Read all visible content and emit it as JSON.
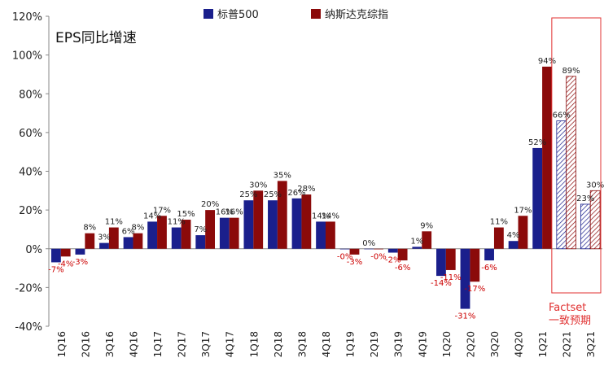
{
  "chart_data": {
    "type": "bar",
    "title": "EPS同比增速",
    "categories": [
      "1Q16",
      "2Q16",
      "3Q16",
      "4Q16",
      "1Q17",
      "2Q17",
      "3Q17",
      "4Q17",
      "1Q18",
      "2Q18",
      "3Q18",
      "4Q18",
      "1Q19",
      "2Q19",
      "3Q19",
      "4Q19",
      "1Q20",
      "2Q20",
      "3Q20",
      "4Q20",
      "1Q21",
      "2Q21",
      "3Q21"
    ],
    "series": [
      {
        "name": "标普500",
        "color": "#1a1f8c",
        "values": [
          -7,
          -3,
          3,
          6,
          14,
          11,
          7,
          16,
          25,
          25,
          26,
          14,
          -0.3,
          0,
          -2,
          1,
          -14,
          -31,
          -6,
          4,
          52,
          66,
          23
        ],
        "labels": [
          "-7%",
          "-3%",
          "3%",
          "6%",
          "14%",
          "11%",
          "7%",
          "16%",
          "25%",
          "25%",
          "26%",
          "14%",
          "-0%",
          "0%",
          "-2%",
          "1%",
          "-14%",
          "-31%",
          "-6%",
          "4%",
          "52%",
          "66%",
          "23%"
        ]
      },
      {
        "name": "纳斯达克综指",
        "color": "#8b0a0a",
        "values": [
          -4,
          8,
          11,
          8,
          17,
          15,
          20,
          16,
          30,
          35,
          28,
          14,
          -3,
          -0.3,
          -6,
          9,
          -11,
          -17,
          11,
          17,
          94,
          89,
          30
        ],
        "labels": [
          "-4%",
          "8%",
          "11%",
          "8%",
          "17%",
          "15%",
          "20%",
          "16%",
          "30%",
          "35%",
          "28%",
          "14%",
          "-3%",
          "-0%",
          "-6%",
          "9%",
          "-11%",
          "-17%",
          "11%",
          "17%",
          "94%",
          "89%",
          "30%"
        ]
      }
    ],
    "forecast_categories": [
      "2Q21",
      "3Q21"
    ],
    "forecast_note_line1": "Factset",
    "forecast_note_line2": "一致预期",
    "ylim": [
      -40,
      120
    ],
    "yticks": [
      -40,
      -20,
      0,
      20,
      40,
      60,
      80,
      100,
      120
    ],
    "ytick_labels": [
      "-40%",
      "-20%",
      "0%",
      "20%",
      "40%",
      "60%",
      "80%",
      "100%",
      "120%"
    ],
    "negative_label_color": "#cc0000",
    "forecast_box_color": "#e03030",
    "legend_position": "top-center"
  }
}
